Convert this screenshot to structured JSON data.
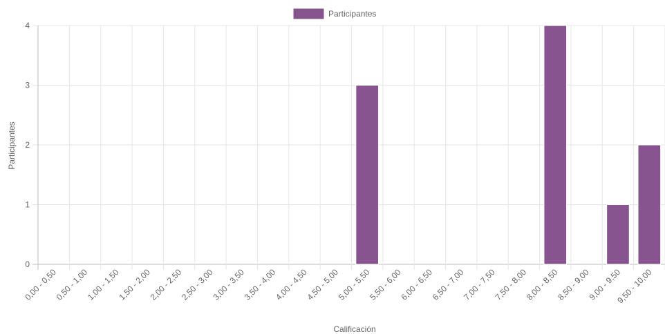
{
  "chart_data": {
    "type": "bar",
    "xlabel": "Calificación",
    "ylabel": "Participantes",
    "ylim": [
      0,
      4
    ],
    "yticks": [
      "0",
      "1",
      "2",
      "3",
      "4"
    ],
    "grid": true,
    "legend_position": "top-center",
    "categories": [
      "0,00 - 0,50",
      "0,50 - 1,00",
      "1,00 - 1,50",
      "1,50 - 2,00",
      "2,00 - 2,50",
      "2,50 - 3,00",
      "3,00 - 3,50",
      "3,50 - 4,00",
      "4,00 - 4,50",
      "4,50 - 5,00",
      "5,00 - 5,50",
      "5,50 - 6,00",
      "6,00 - 6,50",
      "6,50 - 7,00",
      "7,00 - 7,50",
      "7,50 - 8,00",
      "8,00 - 8,50",
      "8,50 - 9,00",
      "9,00 - 9,50",
      "9,50 - 10,00"
    ],
    "series": [
      {
        "name": "Participantes",
        "color": "#87548F",
        "values": [
          0,
          0,
          0,
          0,
          0,
          0,
          0,
          0,
          0,
          0,
          3,
          0,
          0,
          0,
          0,
          0,
          4,
          0,
          1,
          2
        ]
      }
    ]
  }
}
